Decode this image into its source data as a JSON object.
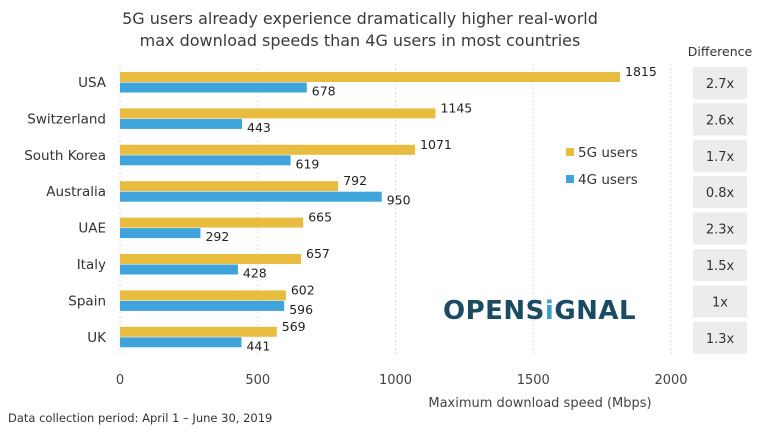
{
  "chart_data": {
    "type": "bar",
    "orientation": "horizontal",
    "title_lines": [
      "5G users already experience dramatically higher real-world",
      "max download speeds than 4G users in most countries"
    ],
    "categories": [
      "USA",
      "Switzerland",
      "South Korea",
      "Australia",
      "UAE",
      "Italy",
      "Spain",
      "UK"
    ],
    "series": [
      {
        "name": "5G users",
        "color": "#E8BD3F",
        "values": [
          1815,
          1145,
          1071,
          792,
          665,
          657,
          602,
          569
        ]
      },
      {
        "name": "4G users",
        "color": "#3FA4DB",
        "values": [
          678,
          443,
          619,
          950,
          292,
          428,
          596,
          441
        ]
      }
    ],
    "difference_header": "Difference",
    "difference": [
      "2.7x",
      "2.6x",
      "1.7x",
      "0.8x",
      "2.3x",
      "1.5x",
      "1x",
      "1.3x"
    ],
    "xlabel": "Maximum download speed  (Mbps)",
    "xlim": [
      0,
      2000
    ],
    "xticks": [
      "0",
      "500",
      "1000",
      "1500",
      "2000"
    ],
    "grid": true,
    "legend_position": "right"
  },
  "footnote": "Data collection period: April 1 – June 30, 2019",
  "logo": {
    "text_a": "OPENS",
    "text_i": "i",
    "text_b": "GNAL",
    "full": "OPENSIGNAL"
  }
}
